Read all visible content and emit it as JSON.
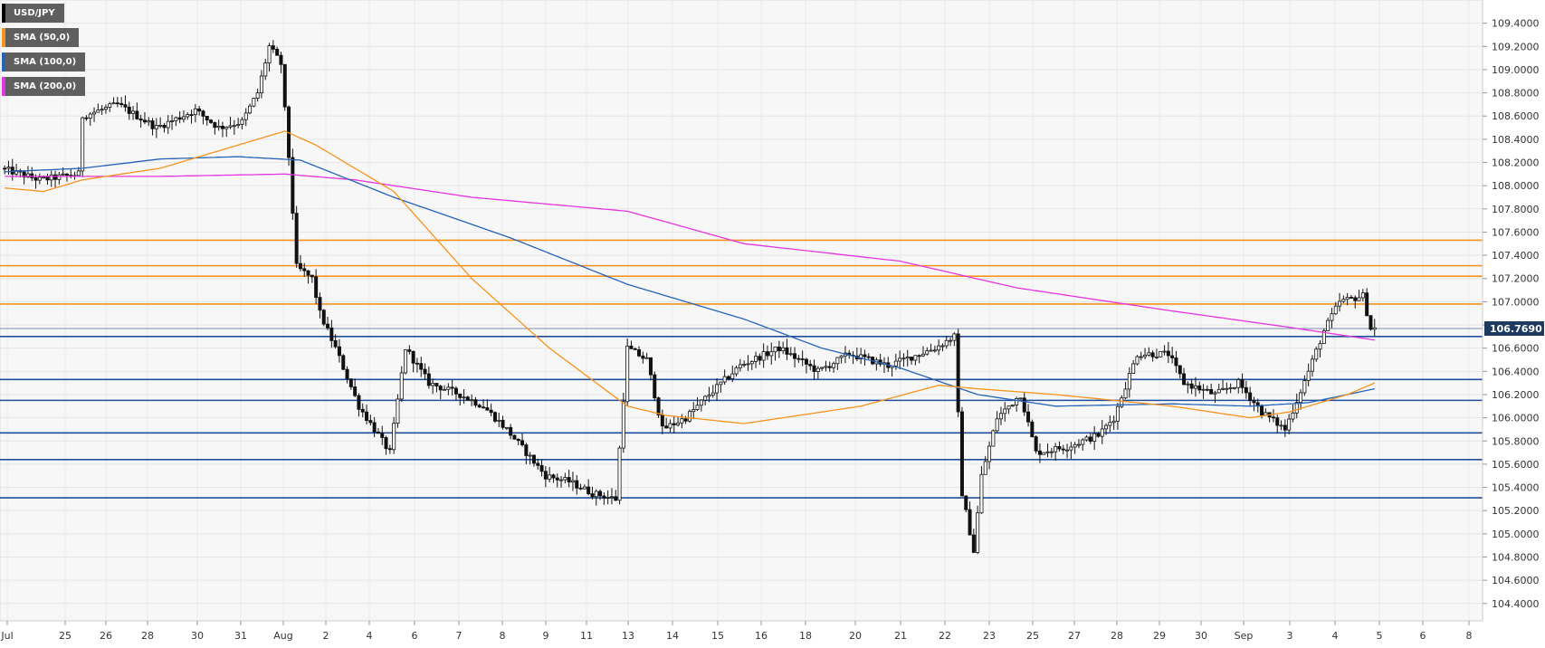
{
  "chart_data": {
    "type": "candlestick",
    "instrument": "USD/JPY",
    "y_axis": {
      "ticks": [
        "109.4000",
        "109.2000",
        "109.0000",
        "108.8000",
        "108.6000",
        "108.4000",
        "108.2000",
        "108.0000",
        "107.8000",
        "107.6000",
        "107.4000",
        "107.2000",
        "107.0000",
        "106.8000",
        "106.6000",
        "106.4000",
        "106.2000",
        "106.0000",
        "105.8000",
        "105.6000",
        "105.4000",
        "105.2000",
        "105.0000",
        "104.8000",
        "104.6000",
        "104.4000"
      ],
      "range": [
        104.25,
        109.6
      ]
    },
    "x_axis": {
      "ticks": [
        "Jul",
        "25",
        "26",
        "28",
        "30",
        "31",
        "Aug",
        "2",
        "4",
        "6",
        "7",
        "8",
        "9",
        "11",
        "13",
        "14",
        "15",
        "16",
        "18",
        "20",
        "21",
        "22",
        "23",
        "25",
        "27",
        "28",
        "29",
        "30",
        "Sep",
        "3",
        "4",
        "5",
        "6",
        "8"
      ]
    },
    "current_price": "106.7690",
    "legend": [
      {
        "label": "USD/JPY",
        "color": "#000000"
      },
      {
        "label": "SMA (50,0)",
        "color": "#f7931e"
      },
      {
        "label": "SMA (100,0)",
        "color": "#2563b8"
      },
      {
        "label": "SMA (200,0)",
        "color": "#e535e0"
      }
    ],
    "resistance_levels": [
      107.53,
      107.31,
      107.22,
      106.98
    ],
    "support_levels": [
      106.7,
      106.33,
      106.15,
      105.87,
      105.64,
      105.31
    ],
    "key_points": [
      {
        "i": 0,
        "p": 108.15
      },
      {
        "i": 10,
        "p": 108.05
      },
      {
        "i": 20,
        "p": 108.1
      },
      {
        "i": 21,
        "p": 108.6
      },
      {
        "i": 30,
        "p": 108.7
      },
      {
        "i": 40,
        "p": 108.5
      },
      {
        "i": 50,
        "p": 108.65
      },
      {
        "i": 56,
        "p": 108.5
      },
      {
        "i": 62,
        "p": 108.55
      },
      {
        "i": 66,
        "p": 108.8
      },
      {
        "i": 69,
        "p": 109.2
      },
      {
        "i": 72,
        "p": 109.05
      },
      {
        "i": 74,
        "p": 108.25
      },
      {
        "i": 76,
        "p": 107.3
      },
      {
        "i": 80,
        "p": 107.2
      },
      {
        "i": 82,
        "p": 106.9
      },
      {
        "i": 86,
        "p": 106.6
      },
      {
        "i": 92,
        "p": 106.1
      },
      {
        "i": 100,
        "p": 105.7
      },
      {
        "i": 104,
        "p": 106.6
      },
      {
        "i": 110,
        "p": 106.3
      },
      {
        "i": 118,
        "p": 106.2
      },
      {
        "i": 124,
        "p": 106.1
      },
      {
        "i": 130,
        "p": 105.9
      },
      {
        "i": 140,
        "p": 105.5
      },
      {
        "i": 146,
        "p": 105.45
      },
      {
        "i": 152,
        "p": 105.35
      },
      {
        "i": 158,
        "p": 105.3
      },
      {
        "i": 161,
        "p": 106.6
      },
      {
        "i": 166,
        "p": 106.5
      },
      {
        "i": 170,
        "p": 105.9
      },
      {
        "i": 176,
        "p": 106.0
      },
      {
        "i": 182,
        "p": 106.2
      },
      {
        "i": 190,
        "p": 106.45
      },
      {
        "i": 200,
        "p": 106.6
      },
      {
        "i": 210,
        "p": 106.4
      },
      {
        "i": 218,
        "p": 106.55
      },
      {
        "i": 228,
        "p": 106.45
      },
      {
        "i": 240,
        "p": 106.6
      },
      {
        "i": 245,
        "p": 106.7
      },
      {
        "i": 247,
        "p": 105.35
      },
      {
        "i": 250,
        "p": 104.85
      },
      {
        "i": 252,
        "p": 105.5
      },
      {
        "i": 256,
        "p": 106.0
      },
      {
        "i": 262,
        "p": 106.2
      },
      {
        "i": 266,
        "p": 105.7
      },
      {
        "i": 274,
        "p": 105.75
      },
      {
        "i": 282,
        "p": 105.85
      },
      {
        "i": 286,
        "p": 106.0
      },
      {
        "i": 292,
        "p": 106.55
      },
      {
        "i": 300,
        "p": 106.55
      },
      {
        "i": 304,
        "p": 106.3
      },
      {
        "i": 312,
        "p": 106.2
      },
      {
        "i": 318,
        "p": 106.3
      },
      {
        "i": 324,
        "p": 106.05
      },
      {
        "i": 330,
        "p": 105.9
      },
      {
        "i": 336,
        "p": 106.4
      },
      {
        "i": 340,
        "p": 106.75
      },
      {
        "i": 344,
        "p": 107.0
      },
      {
        "i": 350,
        "p": 107.05
      },
      {
        "i": 352,
        "p": 106.77
      }
    ],
    "sma50_points": [
      {
        "i": 0,
        "p": 107.98
      },
      {
        "i": 10,
        "p": 107.95
      },
      {
        "i": 20,
        "p": 108.05
      },
      {
        "i": 40,
        "p": 108.15
      },
      {
        "i": 60,
        "p": 108.35
      },
      {
        "i": 72,
        "p": 108.47
      },
      {
        "i": 80,
        "p": 108.35
      },
      {
        "i": 100,
        "p": 107.95
      },
      {
        "i": 120,
        "p": 107.2
      },
      {
        "i": 140,
        "p": 106.6
      },
      {
        "i": 160,
        "p": 106.1
      },
      {
        "i": 170,
        "p": 106.02
      },
      {
        "i": 190,
        "p": 105.95
      },
      {
        "i": 200,
        "p": 106.0
      },
      {
        "i": 220,
        "p": 106.1
      },
      {
        "i": 240,
        "p": 106.28
      },
      {
        "i": 250,
        "p": 106.25
      },
      {
        "i": 270,
        "p": 106.2
      },
      {
        "i": 300,
        "p": 106.1
      },
      {
        "i": 320,
        "p": 106.0
      },
      {
        "i": 330,
        "p": 106.05
      },
      {
        "i": 345,
        "p": 106.2
      },
      {
        "i": 352,
        "p": 106.3
      }
    ],
    "sma100_points": [
      {
        "i": 0,
        "p": 108.12
      },
      {
        "i": 20,
        "p": 108.15
      },
      {
        "i": 40,
        "p": 108.23
      },
      {
        "i": 60,
        "p": 108.25
      },
      {
        "i": 76,
        "p": 108.22
      },
      {
        "i": 100,
        "p": 107.9
      },
      {
        "i": 130,
        "p": 107.55
      },
      {
        "i": 160,
        "p": 107.15
      },
      {
        "i": 190,
        "p": 106.85
      },
      {
        "i": 210,
        "p": 106.6
      },
      {
        "i": 230,
        "p": 106.43
      },
      {
        "i": 250,
        "p": 106.2
      },
      {
        "i": 270,
        "p": 106.1
      },
      {
        "i": 300,
        "p": 106.12
      },
      {
        "i": 320,
        "p": 106.1
      },
      {
        "i": 335,
        "p": 106.13
      },
      {
        "i": 352,
        "p": 106.25
      }
    ],
    "sma200_points": [
      {
        "i": 0,
        "p": 108.08
      },
      {
        "i": 40,
        "p": 108.08
      },
      {
        "i": 72,
        "p": 108.1
      },
      {
        "i": 90,
        "p": 108.05
      },
      {
        "i": 120,
        "p": 107.9
      },
      {
        "i": 160,
        "p": 107.78
      },
      {
        "i": 190,
        "p": 107.5
      },
      {
        "i": 230,
        "p": 107.35
      },
      {
        "i": 260,
        "p": 107.12
      },
      {
        "i": 300,
        "p": 106.92
      },
      {
        "i": 330,
        "p": 106.78
      },
      {
        "i": 352,
        "p": 106.67
      }
    ]
  }
}
